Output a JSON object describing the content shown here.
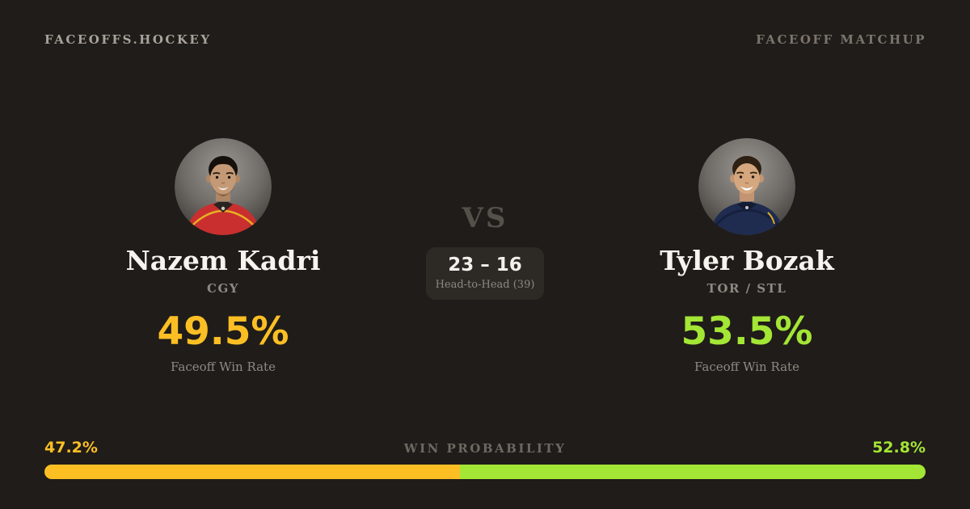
{
  "brand": {
    "logo": "FACEOFFS.HOCKEY",
    "tag": "FACEOFF MATCHUP"
  },
  "matchup": {
    "vs_label": "VS",
    "h2h_score": "23 – 16",
    "h2h_caption": "Head-to-Head (39)"
  },
  "players": [
    {
      "name": "Nazem Kadri",
      "team": "CGY",
      "win_rate": "49.5%",
      "stat_label": "Faceoff Win Rate",
      "accent": "#fbbf24",
      "jersey_color": "#c92f2f"
    },
    {
      "name": "Tyler Bozak",
      "team": "TOR / STL",
      "win_rate": "53.5%",
      "stat_label": "Faceoff Win Rate",
      "accent": "#a3e635",
      "jersey_color": "#1f2c4f"
    }
  ],
  "win_probability": {
    "title": "WIN PROBABILITY",
    "left_label": "47.2%",
    "right_label": "52.8%",
    "left_value": 47.2,
    "right_value": 52.8,
    "left_color": "#fbbf24",
    "right_color": "#a3e635"
  },
  "colors": {
    "background": "#201c19",
    "card": "#2d2a26",
    "text_primary": "#f7f4f0",
    "text_muted": "#8f8983",
    "amber": "#fbbf24",
    "lime": "#a3e635"
  },
  "chart_data": {
    "type": "bar",
    "title": "WIN PROBABILITY",
    "layout": "horizontal-stacked-100",
    "categories": [
      "Nazem Kadri",
      "Tyler Bozak"
    ],
    "series": [
      {
        "name": "Nazem Kadri win probability",
        "values": [
          47.2
        ],
        "color": "#fbbf24"
      },
      {
        "name": "Tyler Bozak win probability",
        "values": [
          52.8
        ],
        "color": "#a3e635"
      }
    ],
    "faceoff_win_rates": {
      "Nazem Kadri": 49.5,
      "Tyler Bozak": 53.5
    },
    "head_to_head": {
      "left_wins": 23,
      "right_wins": 16,
      "total": 39
    }
  }
}
